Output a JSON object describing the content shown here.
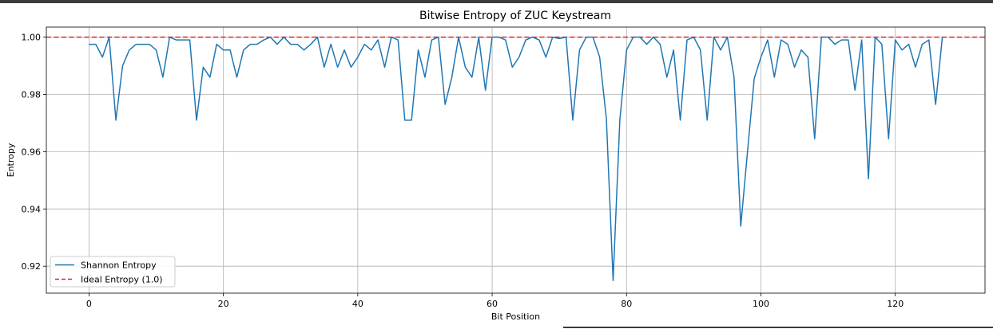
{
  "chart_data": {
    "type": "line",
    "title": "Bitwise Entropy of ZUC Keystream",
    "xlabel": "Bit Position",
    "ylabel": "Entropy",
    "xlim": [
      -6.35,
      133.35
    ],
    "ylim": [
      0.9106,
      1.0035
    ],
    "xticks": [
      0,
      20,
      40,
      60,
      80,
      100,
      120
    ],
    "yticks": [
      0.92,
      0.94,
      0.96,
      0.98,
      1.0
    ],
    "ytick_labels": [
      "0.92",
      "0.94",
      "0.96",
      "0.98",
      "1.00"
    ],
    "grid": true,
    "legend_position": "lower-left",
    "series": [
      {
        "name": "Shannon Entropy",
        "color": "#1f77b4",
        "style": "solid",
        "x_start": 0,
        "x_step": 1,
        "values": [
          0.9975,
          0.9975,
          0.993,
          1.0,
          0.971,
          0.99,
          0.9955,
          0.9975,
          0.9975,
          0.9975,
          0.9955,
          0.986,
          1.0,
          0.999,
          0.999,
          0.999,
          0.971,
          0.9895,
          0.986,
          0.9975,
          0.9955,
          0.9955,
          0.986,
          0.9955,
          0.9975,
          0.9975,
          0.999,
          1.0,
          0.9975,
          1.0,
          0.9975,
          0.9975,
          0.9955,
          0.9975,
          1.0,
          0.9895,
          0.9975,
          0.9895,
          0.9955,
          0.9895,
          0.993,
          0.9975,
          0.9955,
          0.999,
          0.9895,
          1.0,
          0.999,
          0.971,
          0.971,
          0.9955,
          0.986,
          0.999,
          1.0,
          0.9765,
          0.986,
          1.0,
          0.9895,
          0.986,
          1.0,
          0.9815,
          1.0,
          1.0,
          0.999,
          0.9895,
          0.993,
          0.999,
          1.0,
          0.999,
          0.993,
          1.0,
          0.9995,
          1.0,
          0.971,
          0.9955,
          1.0,
          1.0,
          0.993,
          0.9715,
          0.915,
          0.971,
          0.9955,
          1.0,
          1.0,
          0.9975,
          1.0,
          0.9975,
          0.986,
          0.9955,
          0.971,
          0.999,
          1.0,
          0.9955,
          0.971,
          1.0,
          0.9955,
          1.0,
          0.986,
          0.934,
          0.96,
          0.9855,
          0.993,
          0.999,
          0.986,
          0.999,
          0.9975,
          0.9895,
          0.9955,
          0.993,
          0.9645,
          1.0,
          1.0,
          0.9975,
          0.999,
          0.999,
          0.9815,
          0.999,
          0.9505,
          1.0,
          0.9975,
          0.9645,
          0.999,
          0.9955,
          0.9975,
          0.9895,
          0.9975,
          0.999,
          0.9765,
          1.0
        ]
      },
      {
        "name": "Ideal Entropy (1.0)",
        "color": "#d62728",
        "style": "dashed",
        "value": 1.0
      }
    ]
  }
}
